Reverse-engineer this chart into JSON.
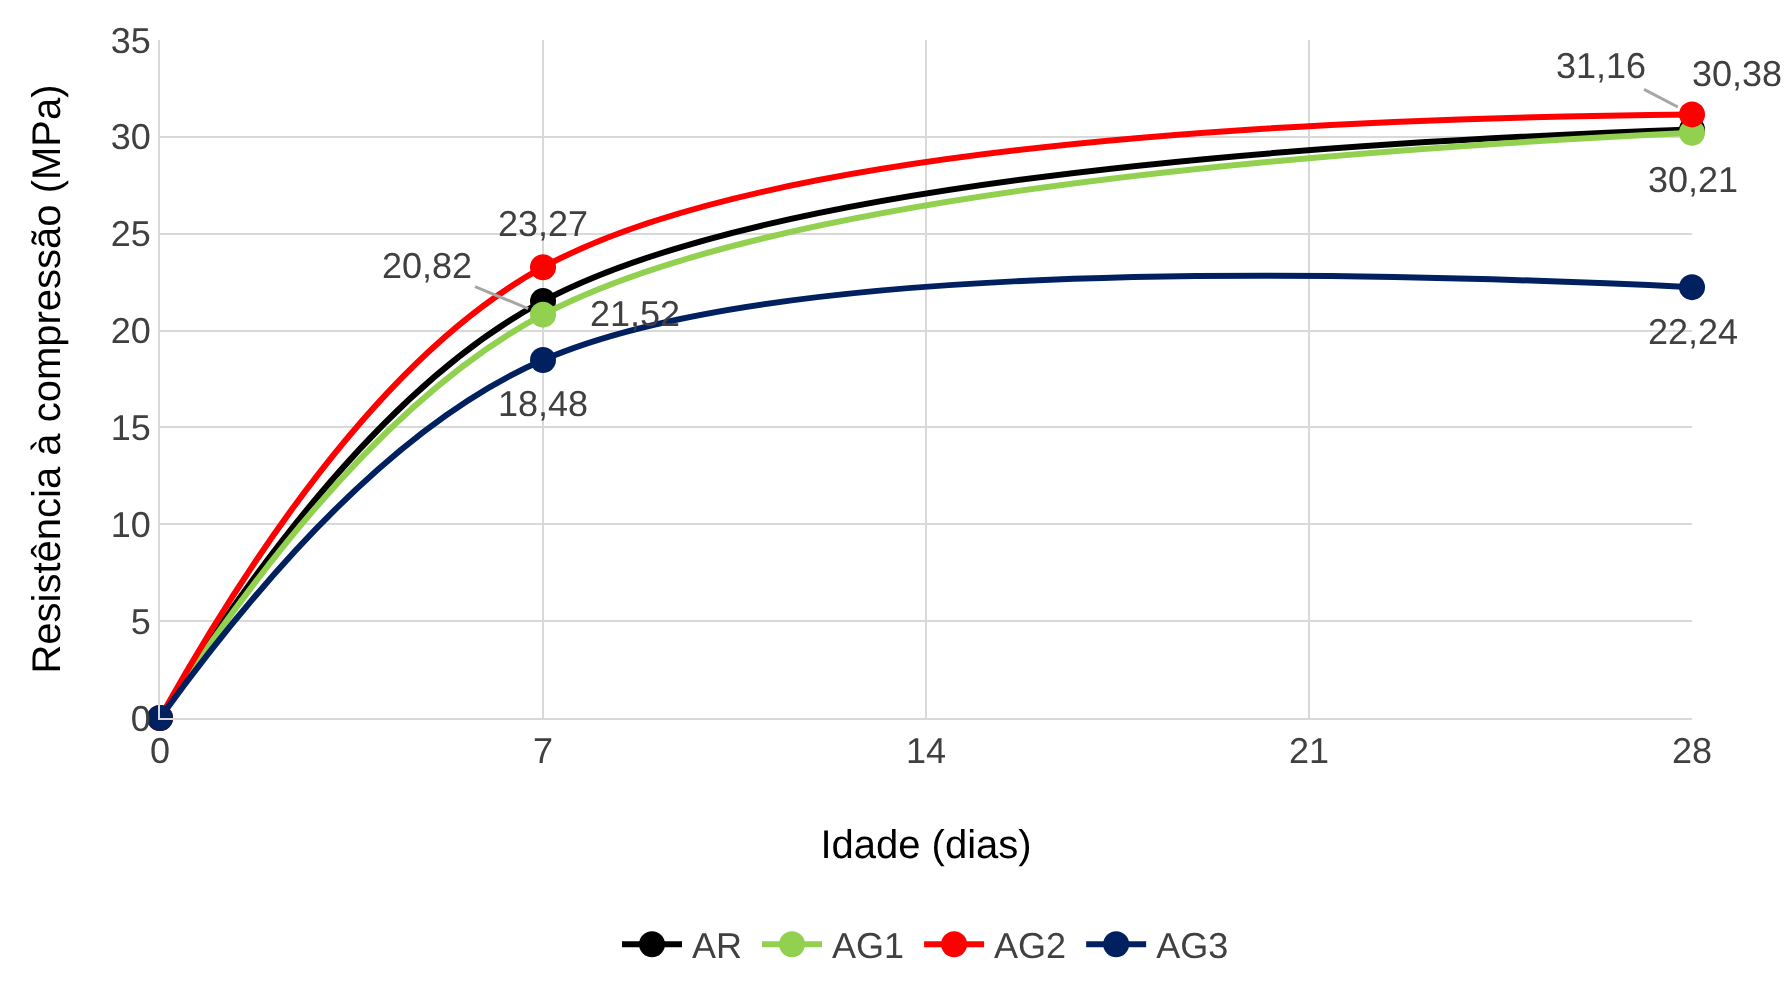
{
  "chart_data": {
    "type": "line",
    "xlabel": "Idade (dias)",
    "ylabel": "Resistência à compressão (MPa)",
    "x": [
      0,
      7,
      28
    ],
    "series": [
      {
        "name": "AR",
        "color": "#000000",
        "values": [
          0,
          21.52,
          30.38
        ],
        "value_labels": [
          null,
          "21,52",
          "30,38"
        ]
      },
      {
        "name": "AG1",
        "color": "#92d050",
        "values": [
          0,
          20.82,
          30.21
        ],
        "value_labels": [
          null,
          "20,82",
          "30,21"
        ]
      },
      {
        "name": "AG2",
        "color": "#ff0000",
        "values": [
          0,
          23.27,
          31.16
        ],
        "value_labels": [
          null,
          "23,27",
          "31,16"
        ]
      },
      {
        "name": "AG3",
        "color": "#002060",
        "values": [
          0,
          18.48,
          22.24
        ],
        "value_labels": [
          null,
          "18,48",
          "22,24"
        ]
      }
    ],
    "xlim": [
      0,
      28
    ],
    "xticks": [
      0,
      7,
      14,
      21,
      28
    ],
    "ylim": [
      0,
      35
    ],
    "yticks": [
      0,
      5,
      10,
      15,
      20,
      25,
      30,
      35
    ],
    "grid": true,
    "legend": "bottom",
    "marker": "circle",
    "line_style": "solid"
  }
}
